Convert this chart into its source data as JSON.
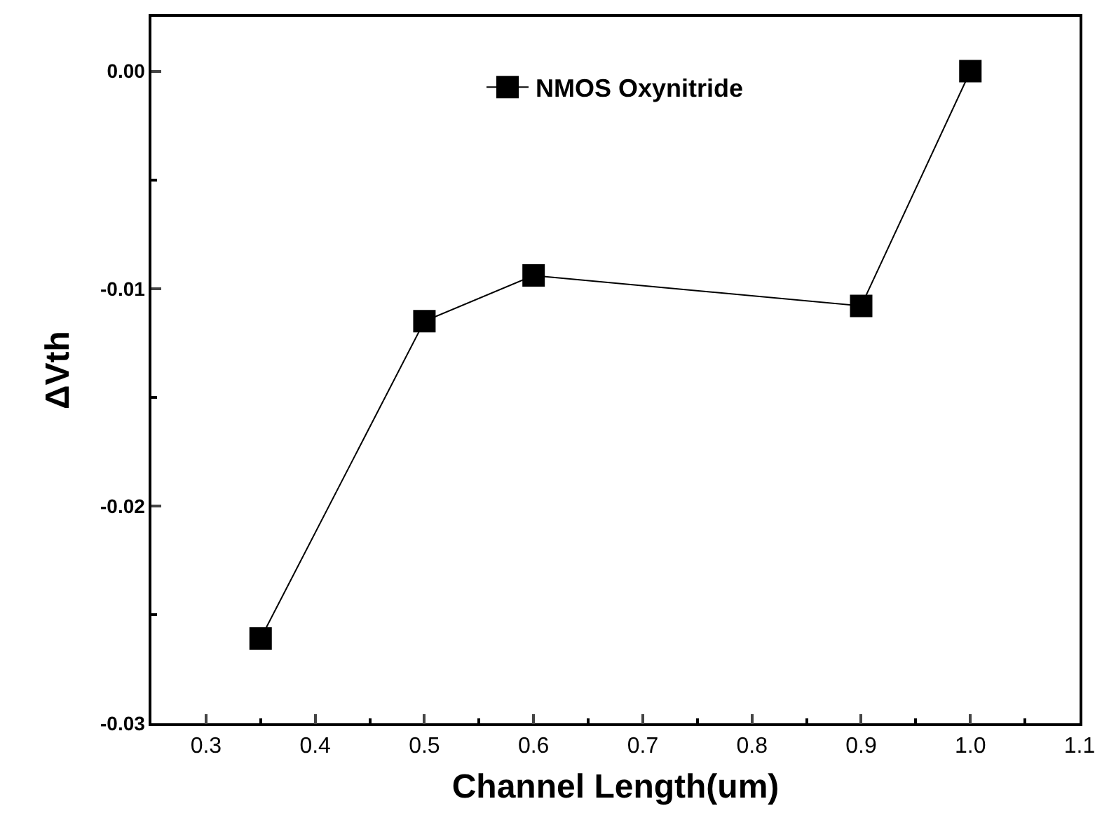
{
  "chart_data": {
    "type": "line",
    "xlabel": "Channel Length(um)",
    "ylabel": "ΔVth",
    "x": [
      0.35,
      0.5,
      0.6,
      0.9,
      1.0
    ],
    "series": [
      {
        "name": "NMOS Oxynitride",
        "color": "#000000",
        "values": [
          -0.0261,
          -0.0115,
          -0.0094,
          -0.0108,
          0.0
        ]
      }
    ],
    "xlim": [
      0.25,
      1.1
    ],
    "xticks": [
      0.3,
      0.4,
      0.5,
      0.6,
      0.7,
      0.8,
      0.9,
      {
        "value": 1.0,
        "label": "1.0"
      },
      1.1
    ],
    "ylim": [
      -0.03,
      0.0025
    ],
    "yticks": [
      {
        "value": -0.03,
        "label": "-0.03"
      },
      {
        "value": -0.02,
        "label": "-0.02"
      },
      {
        "value": -0.01,
        "label": "-0.01"
      },
      {
        "value": 0.0,
        "label": "0.00"
      }
    ],
    "marker": "square",
    "line_style": "solid",
    "legend": "top"
  }
}
